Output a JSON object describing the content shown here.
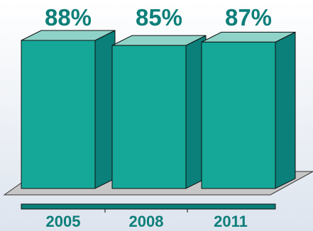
{
  "chart_data": {
    "type": "bar",
    "style": "3d-column",
    "categories": [
      "2005",
      "2008",
      "2011"
    ],
    "values": [
      88,
      85,
      87
    ],
    "data_labels": [
      "88%",
      "85%",
      "87%"
    ],
    "ylim": [
      0,
      100
    ],
    "grid": false,
    "legend": "none"
  },
  "colors": {
    "background_top": "#ffffff",
    "background_bottom": "#dde4ee",
    "bar_front": "#15a898",
    "bar_side": "#0b7f79",
    "bar_top": "#8fd3c8",
    "bar_outline": "#111111",
    "floor": "#c7c7c7",
    "floor_outline": "#333333",
    "axis_bar": "#0b7f79",
    "label_text": "#0d7f79"
  }
}
